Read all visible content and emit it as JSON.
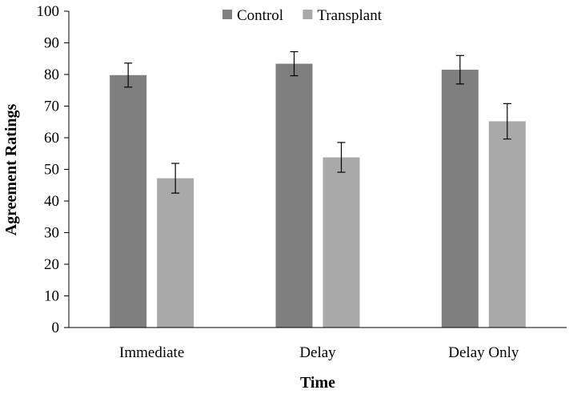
{
  "chart_data": {
    "type": "bar",
    "title": "",
    "xlabel": "Time",
    "ylabel": "Agreement Ratings",
    "categories": [
      "Immediate",
      "Delay",
      "Delay Only"
    ],
    "series": [
      {
        "name": "Control",
        "values": [
          79.8,
          83.4,
          81.5
        ],
        "error": [
          3.8,
          3.8,
          4.5
        ],
        "color": "#7f7f7f"
      },
      {
        "name": "Transplant",
        "values": [
          47.2,
          53.8,
          65.2
        ],
        "error": [
          4.7,
          4.7,
          5.6
        ],
        "color": "#a9a9a9"
      }
    ],
    "ylim": [
      0,
      100
    ],
    "yticks": [
      0,
      10,
      20,
      30,
      40,
      50,
      60,
      70,
      80,
      90,
      100
    ],
    "grid": false,
    "legend": "top-center"
  }
}
